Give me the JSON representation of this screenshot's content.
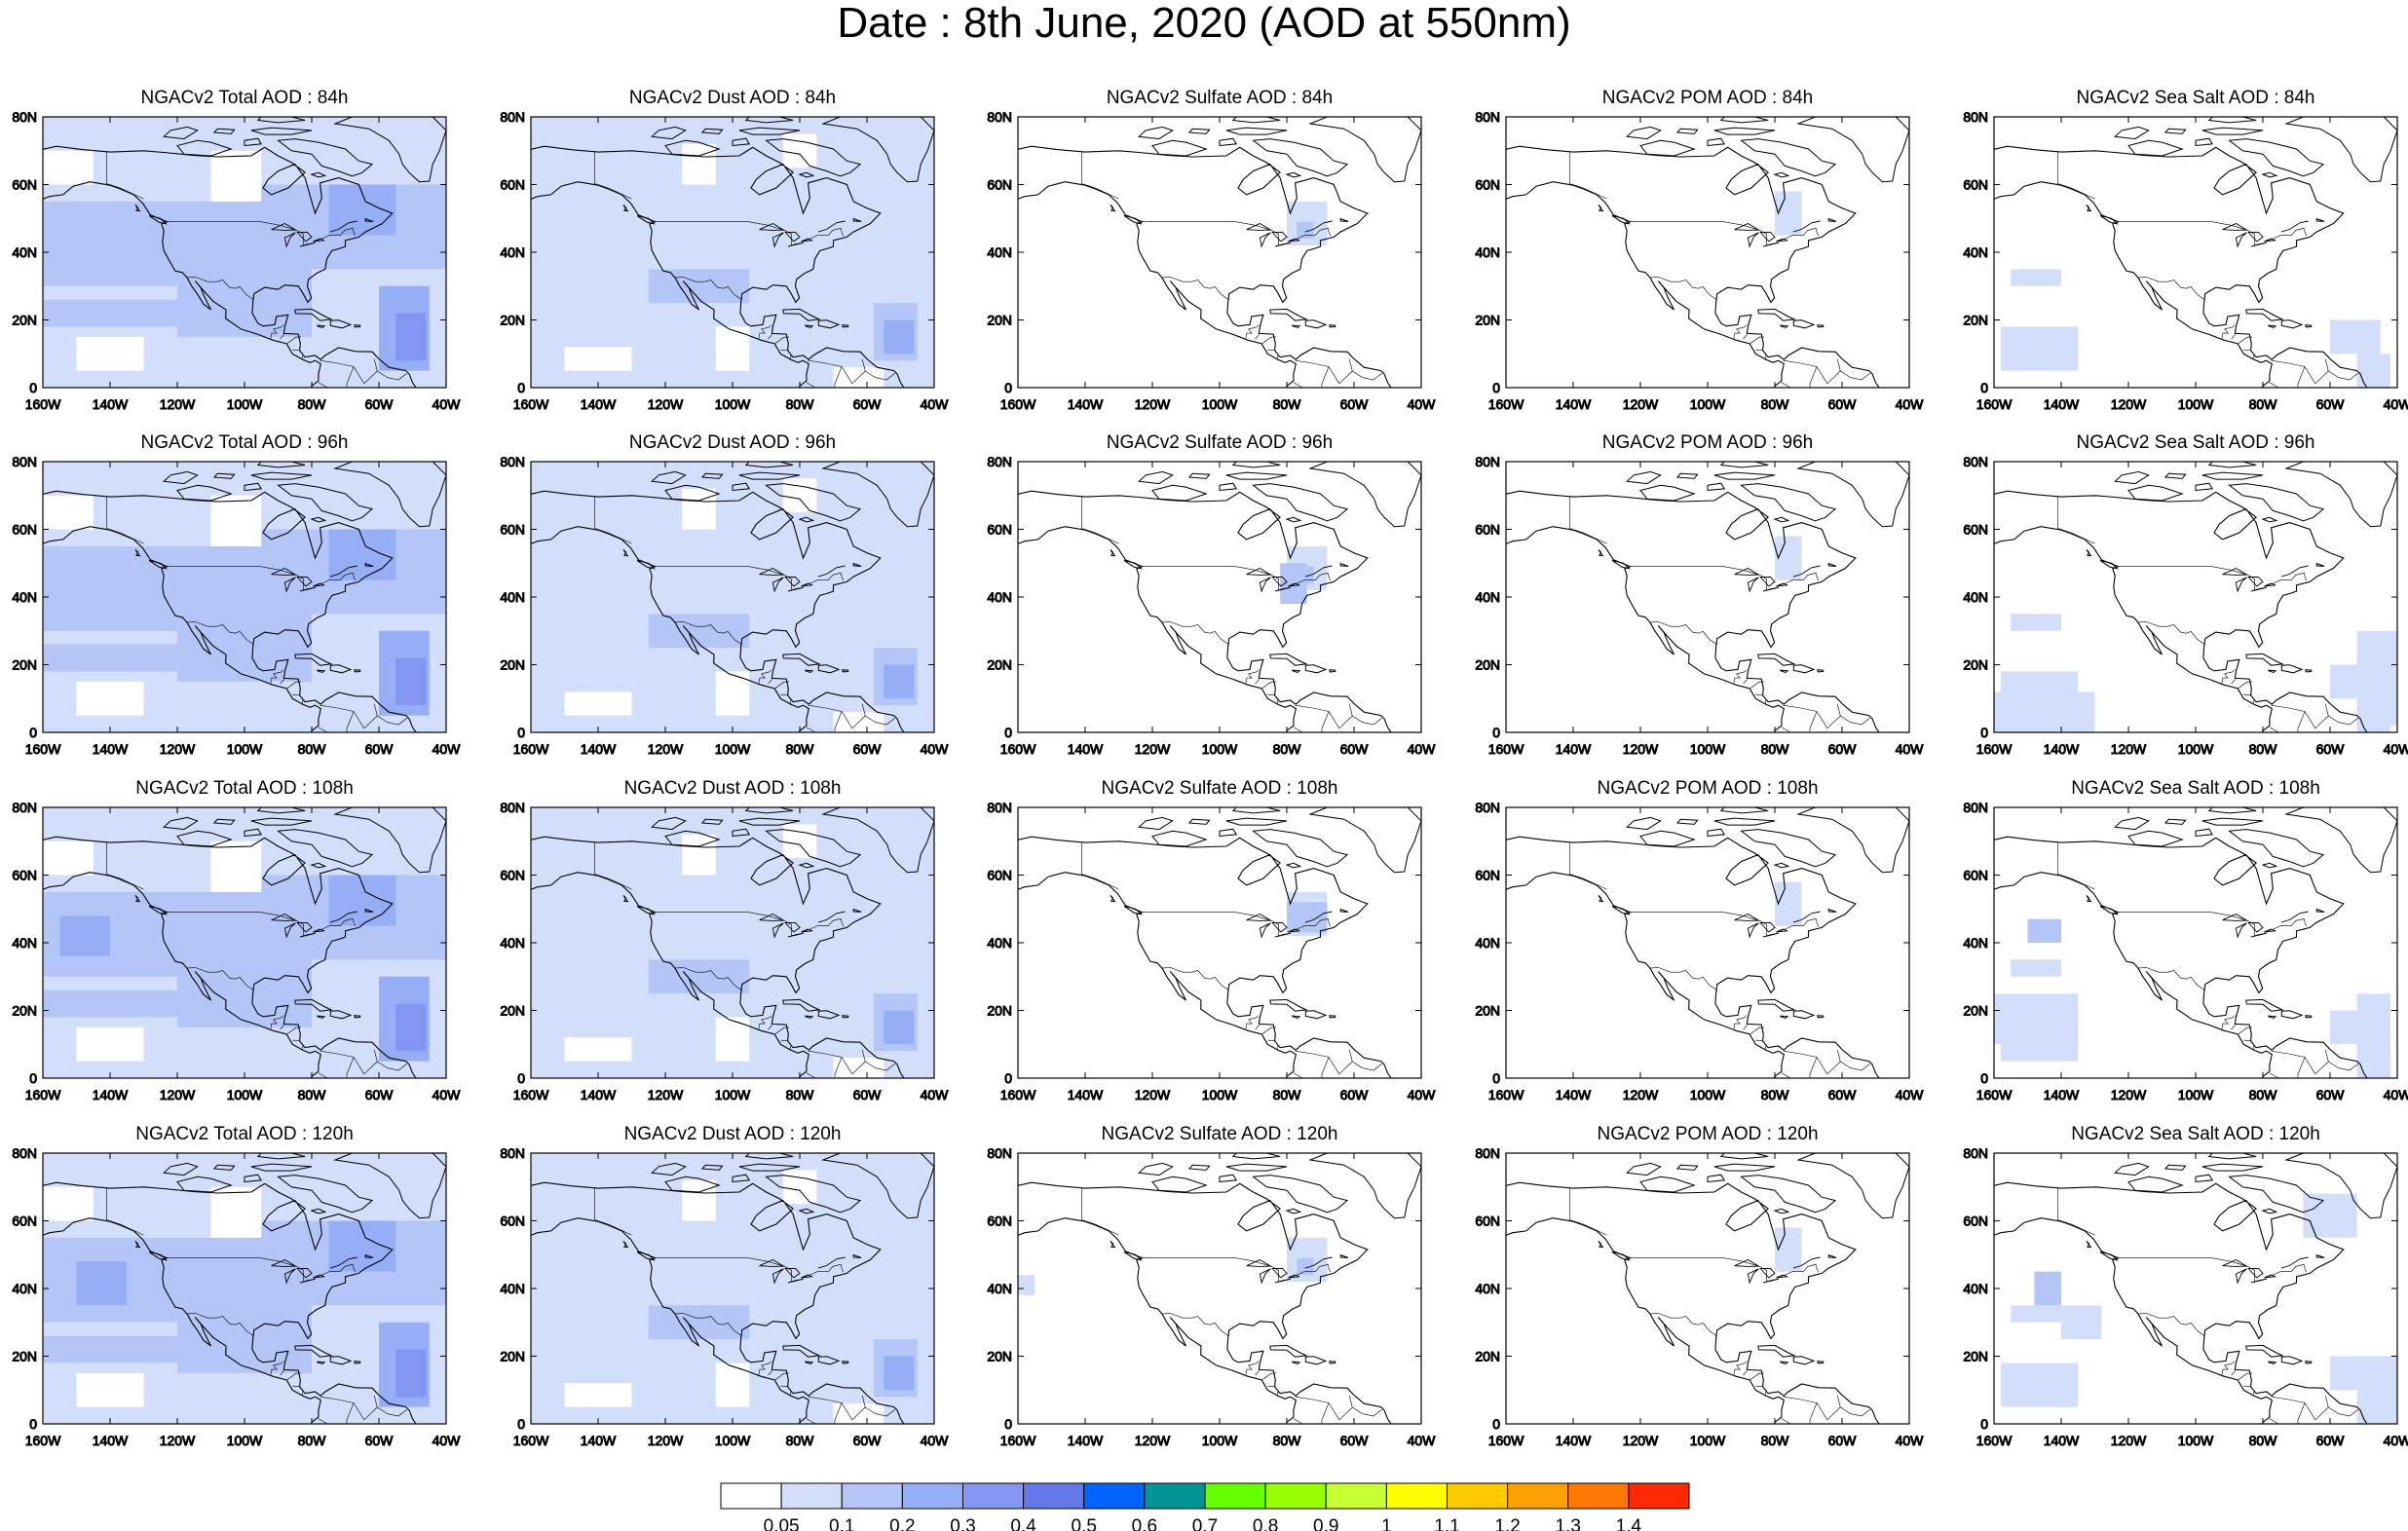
{
  "title": "Date : 8th June, 2020 (AOD at 550nm)",
  "x_ticks": [
    "160W",
    "140W",
    "120W",
    "100W",
    "80W",
    "60W",
    "40W"
  ],
  "y_ticks": [
    "80N",
    "60N",
    "40N",
    "20N",
    "0"
  ],
  "rows": [
    "84h",
    "96h",
    "108h",
    "120h"
  ],
  "panels": [
    [
      "NGACv2 Total AOD : 84h",
      "NGACv2 Dust AOD : 84h",
      "NGACv2 Sulfate AOD : 84h",
      "NGACv2 POM AOD : 84h",
      "NGACv2 Sea Salt AOD : 84h"
    ],
    [
      "NGACv2 Total AOD : 96h",
      "NGACv2 Dust AOD : 96h",
      "NGACv2 Sulfate AOD : 96h",
      "NGACv2 POM AOD : 96h",
      "NGACv2 Sea Salt AOD : 96h"
    ],
    [
      "NGACv2 Total AOD : 108h",
      "NGACv2 Dust AOD : 108h",
      "NGACv2 Sulfate AOD : 108h",
      "NGACv2 POM AOD : 108h",
      "NGACv2 Sea Salt AOD : 108h"
    ],
    [
      "NGACv2 Total AOD : 120h",
      "NGACv2 Dust AOD : 120h",
      "NGACv2 Sulfate AOD : 120h",
      "NGACv2 POM AOD : 120h",
      "NGACv2 Sea Salt  AOD : 120h"
    ]
  ],
  "species": [
    "total",
    "dust",
    "sulfate",
    "pom",
    "seasalt"
  ],
  "colorbar": {
    "labels": [
      "0.05",
      "0.1",
      "0.2",
      "0.3",
      "0.4",
      "0.5",
      "0.6",
      "0.7",
      "0.8",
      "0.9",
      "1",
      "1.1",
      "1.2",
      "1.3",
      "1.4"
    ],
    "colors": [
      "#ffffff",
      "#d2defa",
      "#b4c6f8",
      "#96aef6",
      "#8296f2",
      "#6478ea",
      "#0064ff",
      "#009696",
      "#64ff00",
      "#96ff00",
      "#c8ff32",
      "#ffff00",
      "#ffc800",
      "#ffa000",
      "#ff7800",
      "#ff2800"
    ]
  }
}
